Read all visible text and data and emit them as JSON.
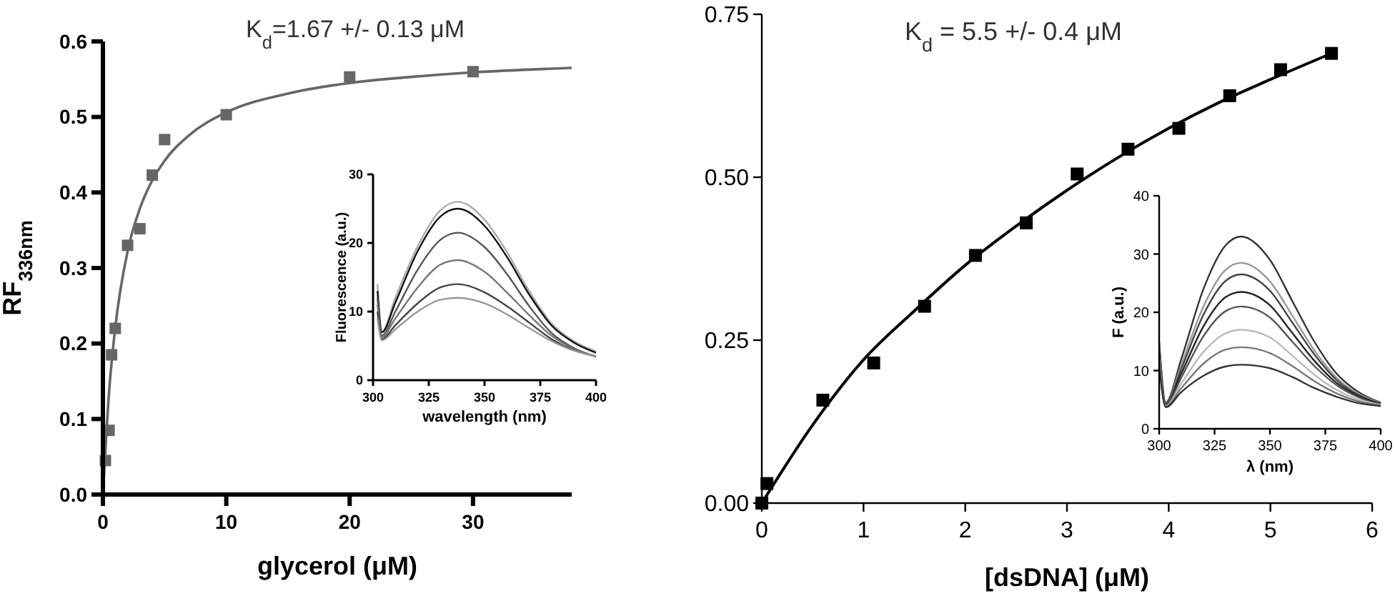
{
  "chart_data": [
    {
      "type": "scatter",
      "ylabel": "RF$_{336nm}$",
      "xlabel": "glycerol (μM)",
      "annotations": [
        "K$_{d}$=1.67 +/- 0.13 μM"
      ],
      "xlim": [
        0,
        38
      ],
      "xticks": [
        0,
        10,
        20,
        30
      ],
      "ylim": [
        0,
        0.6
      ],
      "yticks": [
        {
          "value": 0,
          "label": "0.0"
        },
        0.1,
        0.2,
        0.3,
        0.4,
        0.5,
        0.6
      ],
      "series": [
        {
          "type": "scatter",
          "marker": "square",
          "color": "#666666",
          "x": [
            0.2,
            0.5,
            0.7,
            1,
            2,
            3,
            4,
            5,
            10,
            20,
            30
          ],
          "values": [
            0.045,
            0.085,
            0.185,
            0.22,
            0.33,
            0.352,
            0.423,
            0.47,
            0.503,
            0.553,
            0.56
          ]
        },
        {
          "type": "line",
          "color": "#666666",
          "x": [
            0,
            0.5,
            1,
            2,
            3,
            4,
            5,
            7,
            10,
            15,
            20,
            25,
            30,
            38
          ],
          "values": [
            0,
            0.136,
            0.221,
            0.322,
            0.379,
            0.416,
            0.442,
            0.476,
            0.506,
            0.531,
            0.545,
            0.553,
            0.559,
            0.565
          ]
        }
      ]
    },
    {
      "type": "line",
      "ylabel": "Fluorescence (a.u.)",
      "xlabel": "wavelength (nm)",
      "xlim": [
        300,
        400
      ],
      "xticks": [
        300,
        325,
        350,
        375,
        400
      ],
      "ylim": [
        0,
        30
      ],
      "yticks": [
        0,
        10,
        20,
        30
      ],
      "x": [
        302,
        304,
        310,
        320,
        330,
        338,
        350,
        360,
        370,
        380,
        390,
        400
      ],
      "series": [
        {
          "color": "#aaaaaa",
          "values": [
            14,
            7,
            12,
            19.5,
            24.7,
            26,
            23.4,
            18.7,
            13,
            8.3,
            5.7,
            4.2
          ]
        },
        {
          "color": "#111111",
          "values": [
            13,
            7,
            11.3,
            18.8,
            23.8,
            25,
            22.5,
            18,
            12.5,
            8,
            5.5,
            4
          ]
        },
        {
          "color": "#555555",
          "values": [
            12,
            6.5,
            10,
            16.1,
            20.4,
            21.5,
            19.4,
            15.5,
            10.8,
            6.9,
            4.7,
            3.4
          ]
        },
        {
          "color": "#777777",
          "values": [
            11,
            6.3,
            9,
            13.5,
            16.8,
            17.5,
            15.8,
            12.8,
            9.5,
            6.5,
            4.6,
            3.5
          ]
        },
        {
          "color": "#444444",
          "values": [
            10,
            6,
            8,
            11.2,
            13.5,
            14,
            12.8,
            10.8,
            8.4,
            6,
            4.4,
            3.5
          ]
        },
        {
          "color": "#999999",
          "values": [
            9,
            5.8,
            7.4,
            10,
            11.7,
            12,
            11.2,
            9.6,
            7.6,
            5.7,
            4.3,
            3.5
          ]
        }
      ]
    },
    {
      "type": "scatter",
      "xlabel": "[dsDNA] (μM)",
      "annotations": [
        "K$_{d}$ = 5.5 +/- 0.4 μM"
      ],
      "xlim": [
        0,
        6
      ],
      "xticks": [
        0,
        1,
        2,
        3,
        4,
        5,
        6
      ],
      "ylim": [
        0,
        0.75
      ],
      "yticks": [
        {
          "value": 0,
          "label": "0.00"
        },
        {
          "value": 0.25,
          "label": "0.25"
        },
        {
          "value": 0.5,
          "label": "0.50"
        },
        {
          "value": 0.75,
          "label": "0.75"
        }
      ],
      "series": [
        {
          "type": "scatter",
          "marker": "square",
          "color": "#000000",
          "x": [
            0,
            0.05,
            0.6,
            1.1,
            1.6,
            2.1,
            2.6,
            3.1,
            3.6,
            4.1,
            4.6,
            5.1,
            5.6
          ],
          "values": [
            0,
            0.03,
            0.158,
            0.215,
            0.302,
            0.38,
            0.43,
            0.505,
            0.543,
            0.575,
            0.625,
            0.665,
            0.69
          ]
        },
        {
          "type": "line",
          "color": "#000000",
          "x": [
            0,
            0.5,
            1,
            1.5,
            2,
            2.5,
            3,
            3.5,
            4,
            4.5,
            5,
            5.6
          ],
          "values": [
            0,
            0.12,
            0.22,
            0.295,
            0.365,
            0.425,
            0.48,
            0.53,
            0.575,
            0.615,
            0.65,
            0.69
          ]
        }
      ]
    },
    {
      "type": "line",
      "ylabel": "F (a.u.)",
      "xlabel": "λ (nm)",
      "xlim": [
        300,
        400
      ],
      "xticks": [
        300,
        325,
        350,
        375,
        400
      ],
      "ylim": [
        0,
        40
      ],
      "yticks": [
        0,
        10,
        20,
        30,
        40
      ],
      "x": [
        300,
        303,
        310,
        320,
        330,
        337,
        350,
        360,
        370,
        380,
        390,
        400
      ],
      "series": [
        {
          "color": "#333333",
          "values": [
            15,
            4.5,
            12,
            24,
            31.5,
            33,
            29,
            22,
            15,
            9.5,
            6.3,
            4.5
          ]
        },
        {
          "color": "#999999",
          "values": [
            14,
            4.3,
            11,
            21,
            27.3,
            28.5,
            25.3,
            19.5,
            13.5,
            8.8,
            6,
            4.4
          ]
        },
        {
          "color": "#444444",
          "values": [
            13.5,
            4.2,
            10.3,
            19.6,
            25.4,
            26.5,
            23.7,
            18.3,
            12.8,
            8.4,
            5.8,
            4.3
          ]
        },
        {
          "color": "#222222",
          "values": [
            13,
            4.1,
            9.5,
            17.6,
            22.6,
            23.5,
            21.2,
            16.5,
            11.7,
            7.9,
            5.6,
            4.3
          ]
        },
        {
          "color": "#555555",
          "values": [
            12.5,
            4,
            8.8,
            15.9,
            20.2,
            21,
            19.1,
            15,
            10.8,
            7.5,
            5.4,
            4.2
          ]
        },
        {
          "color": "#bbbbbb",
          "values": [
            12,
            3.9,
            7.8,
            13.2,
            16.4,
            17,
            15.7,
            12.6,
            9.3,
            6.7,
            5,
            4.1
          ]
        },
        {
          "color": "#777777",
          "values": [
            11.5,
            3.8,
            7,
            11.2,
            13.6,
            14,
            13,
            10.8,
            8.2,
            6.1,
            4.7,
            4
          ]
        },
        {
          "color": "#333333",
          "values": [
            11,
            3.7,
            6.3,
            9.1,
            10.7,
            11,
            10.4,
            8.9,
            7,
            5.5,
            4.4,
            3.9
          ]
        }
      ]
    }
  ]
}
